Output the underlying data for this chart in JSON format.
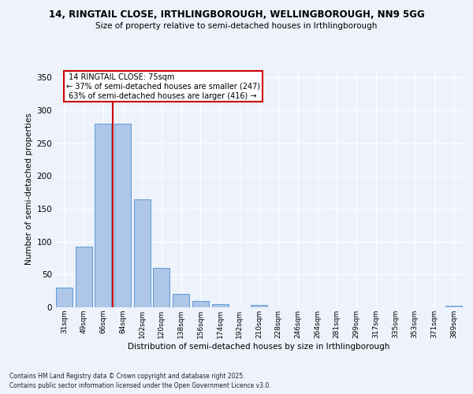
{
  "title1": "14, RINGTAIL CLOSE, IRTHLINGBOROUGH, WELLINGBOROUGH, NN9 5GG",
  "title2": "Size of property relative to semi-detached houses in Irthlingborough",
  "xlabel": "Distribution of semi-detached houses by size in Irthlingborough",
  "ylabel": "Number of semi-detached properties",
  "bar_labels": [
    "31sqm",
    "49sqm",
    "66sqm",
    "84sqm",
    "102sqm",
    "120sqm",
    "138sqm",
    "156sqm",
    "174sqm",
    "192sqm",
    "210sqm",
    "228sqm",
    "246sqm",
    "264sqm",
    "281sqm",
    "299sqm",
    "317sqm",
    "335sqm",
    "353sqm",
    "371sqm",
    "389sqm"
  ],
  "bar_values": [
    30,
    93,
    280,
    280,
    165,
    60,
    21,
    10,
    5,
    0,
    4,
    0,
    0,
    0,
    0,
    0,
    0,
    0,
    0,
    0,
    2
  ],
  "bar_color": "#aec6e8",
  "bar_edge_color": "#5b9bd5",
  "property_label": "14 RINGTAIL CLOSE: 75sqm",
  "pct_smaller": 37,
  "count_smaller": 247,
  "pct_larger": 63,
  "count_larger": 416,
  "vline_color": "#cc0000",
  "annotation_box_color": "#cc0000",
  "ylim": [
    0,
    360
  ],
  "yticks": [
    0,
    50,
    100,
    150,
    200,
    250,
    300,
    350
  ],
  "background_color": "#eef2fb",
  "grid_color": "#ffffff",
  "footer1": "Contains HM Land Registry data © Crown copyright and database right 2025.",
  "footer2": "Contains public sector information licensed under the Open Government Licence v3.0."
}
